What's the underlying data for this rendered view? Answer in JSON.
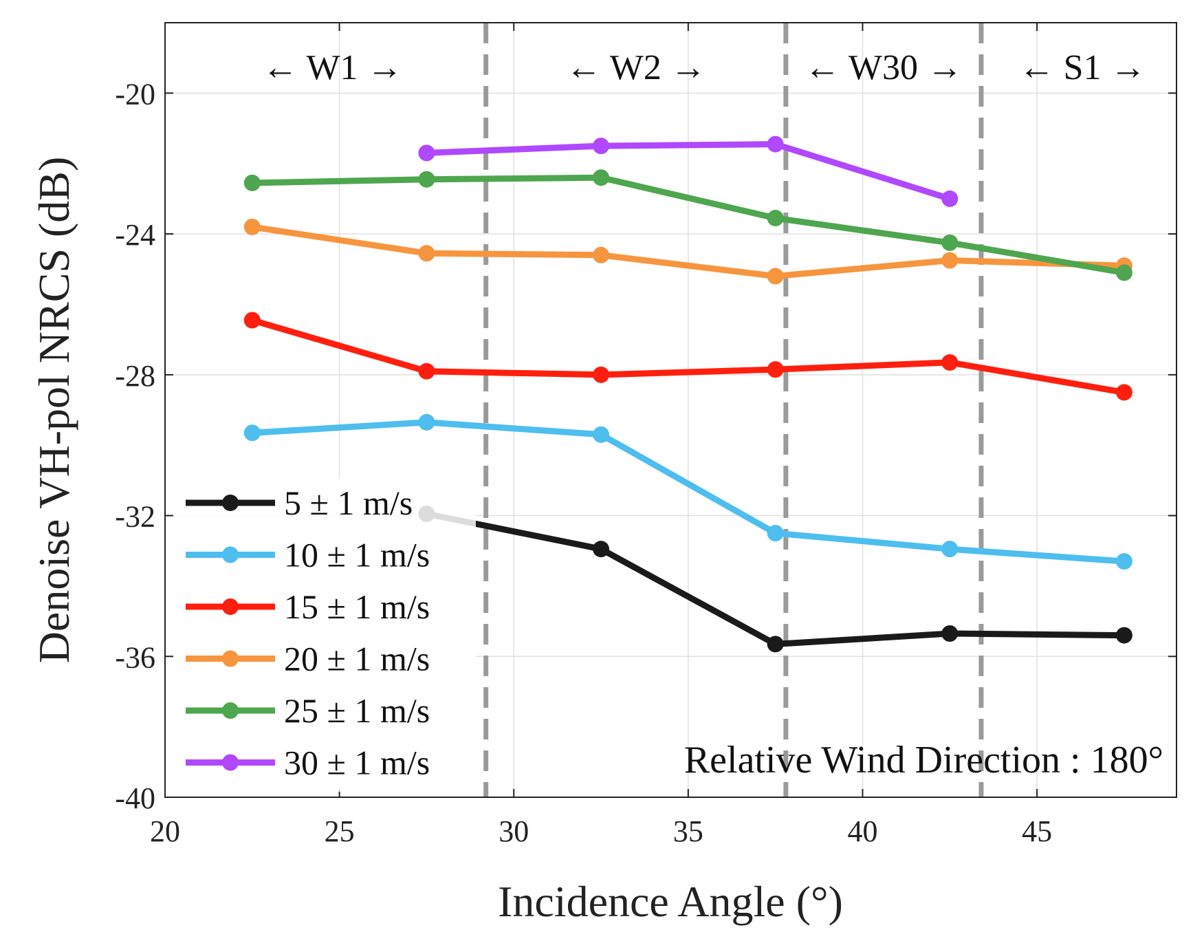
{
  "chart_data": {
    "type": "line",
    "xlabel": "Incidence Angle (°)",
    "ylabel": "Denoise VH-pol NRCS (dB)",
    "xlim": [
      20,
      49
    ],
    "ylim": [
      -40,
      -18
    ],
    "xticks": [
      "20",
      "25",
      "30",
      "35",
      "40",
      "45"
    ],
    "yticks": [
      "-20",
      "-24",
      "-28",
      "-32",
      "-36",
      "-40"
    ],
    "grid": true,
    "legend_position": "lower-left",
    "annotation": "Relative Wind Direction : 180°",
    "regions": [
      {
        "label": "← W1 →",
        "center": 24.8
      },
      {
        "label": "← W2 →",
        "center": 33.5
      },
      {
        "label": "← W30 →",
        "center": 40.6
      },
      {
        "label": "← S1 →",
        "center": 46.3
      }
    ],
    "boundaries": [
      29.2,
      37.8,
      43.4
    ],
    "boundary_color": "#9a9a9a",
    "series": [
      {
        "name": "5 ± 1 m/s",
        "color": "#1a1a1a",
        "x": [
          27.5,
          32.5,
          37.5,
          42.5,
          47.5
        ],
        "values": [
          -31.95,
          -32.95,
          -35.65,
          -35.35,
          -35.4
        ]
      },
      {
        "name": "10 ± 1 m/s",
        "color": "#4dbeee",
        "x": [
          22.5,
          27.5,
          32.5,
          37.5,
          42.5,
          47.5
        ],
        "values": [
          -29.65,
          -29.35,
          -29.7,
          -32.5,
          -32.95,
          -33.3
        ]
      },
      {
        "name": "15 ± 1 m/s",
        "color": "#ff1f0f",
        "x": [
          22.5,
          27.5,
          32.5,
          37.5,
          42.5,
          47.5
        ],
        "values": [
          -26.45,
          -27.9,
          -28.0,
          -27.85,
          -27.65,
          -28.5
        ]
      },
      {
        "name": "20 ± 1 m/s",
        "color": "#f7953e",
        "x": [
          22.5,
          27.5,
          32.5,
          37.5,
          42.5,
          47.5
        ],
        "values": [
          -23.8,
          -24.55,
          -24.6,
          -25.2,
          -24.75,
          -24.9
        ]
      },
      {
        "name": "25 ± 1 m/s",
        "color": "#4ea64e",
        "x": [
          22.5,
          27.5,
          32.5,
          37.5,
          42.5,
          47.5
        ],
        "values": [
          -22.55,
          -22.45,
          -22.4,
          -23.55,
          -24.25,
          -25.1
        ]
      },
      {
        "name": "30 ± 1 m/s",
        "color": "#b048ff",
        "x": [
          27.5,
          32.5,
          37.5,
          42.5
        ],
        "values": [
          -21.7,
          -21.5,
          -21.45,
          -23.0
        ]
      }
    ]
  }
}
